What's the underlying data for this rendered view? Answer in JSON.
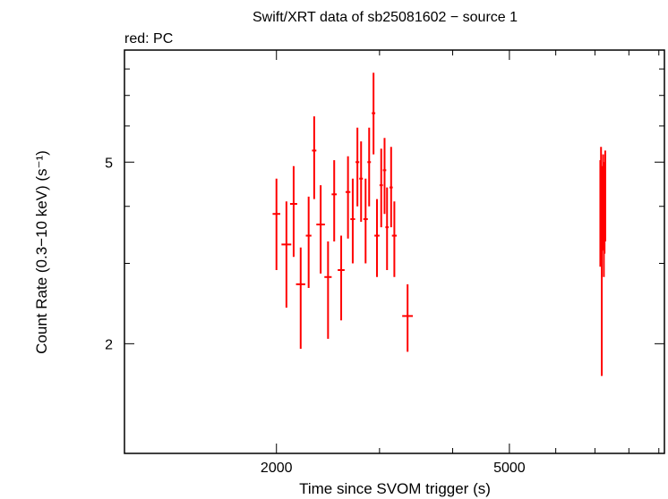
{
  "chart_data": {
    "type": "scatter",
    "title": "Swift/XRT data of sb25081602 − source 1",
    "subtitle": "red: PC",
    "xlabel": "Time since SVOM trigger (s)",
    "ylabel": "Count Rate (0.3−10 keV) (s⁻¹)",
    "x_scale": "log",
    "y_scale": "log",
    "xlim": [
      1100,
      9200
    ],
    "ylim": [
      1.15,
      8.8
    ],
    "x_ticks": [
      {
        "value": 2000,
        "label": "2000"
      },
      {
        "value": 5000,
        "label": "5000"
      }
    ],
    "y_ticks": [
      {
        "value": 2,
        "label": "2"
      },
      {
        "value": 5,
        "label": "5"
      }
    ],
    "x_minor_ticks": [
      3000,
      4000,
      6000,
      7000,
      8000,
      9000
    ],
    "y_minor_ticks": [
      3,
      4,
      6,
      7,
      8
    ],
    "grid": false,
    "series": [
      {
        "name": "PC",
        "color": "#ff0000",
        "points": [
          {
            "x": 2000,
            "xerr_lo": 30,
            "xerr_hi": 30,
            "y": 3.85,
            "yerr_lo": 0.95,
            "yerr_hi": 0.75
          },
          {
            "x": 2080,
            "xerr_lo": 40,
            "xerr_hi": 40,
            "y": 3.3,
            "yerr_lo": 0.9,
            "yerr_hi": 0.8
          },
          {
            "x": 2140,
            "xerr_lo": 30,
            "xerr_hi": 30,
            "y": 4.05,
            "yerr_lo": 0.95,
            "yerr_hi": 0.85
          },
          {
            "x": 2200,
            "xerr_lo": 40,
            "xerr_hi": 40,
            "y": 2.7,
            "yerr_lo": 0.75,
            "yerr_hi": 0.55
          },
          {
            "x": 2270,
            "xerr_lo": 25,
            "xerr_hi": 25,
            "y": 3.45,
            "yerr_lo": 0.8,
            "yerr_hi": 0.75
          },
          {
            "x": 2320,
            "xerr_lo": 20,
            "xerr_hi": 20,
            "y": 5.3,
            "yerr_lo": 1.15,
            "yerr_hi": 1.0
          },
          {
            "x": 2380,
            "xerr_lo": 40,
            "xerr_hi": 40,
            "y": 3.65,
            "yerr_lo": 0.8,
            "yerr_hi": 0.8
          },
          {
            "x": 2450,
            "xerr_lo": 35,
            "xerr_hi": 35,
            "y": 2.8,
            "yerr_lo": 0.75,
            "yerr_hi": 0.55
          },
          {
            "x": 2510,
            "xerr_lo": 25,
            "xerr_hi": 25,
            "y": 4.25,
            "yerr_lo": 0.9,
            "yerr_hi": 0.8
          },
          {
            "x": 2580,
            "xerr_lo": 35,
            "xerr_hi": 35,
            "y": 2.9,
            "yerr_lo": 0.65,
            "yerr_hi": 0.55
          },
          {
            "x": 2650,
            "xerr_lo": 25,
            "xerr_hi": 25,
            "y": 4.3,
            "yerr_lo": 0.9,
            "yerr_hi": 0.85
          },
          {
            "x": 2700,
            "xerr_lo": 25,
            "xerr_hi": 25,
            "y": 3.75,
            "yerr_lo": 0.75,
            "yerr_hi": 0.85
          },
          {
            "x": 2750,
            "xerr_lo": 20,
            "xerr_hi": 20,
            "y": 5.0,
            "yerr_lo": 1.0,
            "yerr_hi": 0.95
          },
          {
            "x": 2790,
            "xerr_lo": 20,
            "xerr_hi": 20,
            "y": 4.6,
            "yerr_lo": 0.9,
            "yerr_hi": 0.95
          },
          {
            "x": 2840,
            "xerr_lo": 25,
            "xerr_hi": 25,
            "y": 3.75,
            "yerr_lo": 0.75,
            "yerr_hi": 0.85
          },
          {
            "x": 2880,
            "xerr_lo": 20,
            "xerr_hi": 20,
            "y": 5.0,
            "yerr_lo": 1.0,
            "yerr_hi": 0.95
          },
          {
            "x": 2930,
            "xerr_lo": 20,
            "xerr_hi": 20,
            "y": 6.4,
            "yerr_lo": 1.2,
            "yerr_hi": 1.45
          },
          {
            "x": 2970,
            "xerr_lo": 30,
            "xerr_hi": 30,
            "y": 3.45,
            "yerr_lo": 0.65,
            "yerr_hi": 0.7
          },
          {
            "x": 3020,
            "xerr_lo": 20,
            "xerr_hi": 20,
            "y": 4.45,
            "yerr_lo": 0.85,
            "yerr_hi": 0.9
          },
          {
            "x": 3060,
            "xerr_lo": 20,
            "xerr_hi": 20,
            "y": 4.8,
            "yerr_lo": 0.95,
            "yerr_hi": 0.85
          },
          {
            "x": 3090,
            "xerr_lo": 20,
            "xerr_hi": 20,
            "y": 3.6,
            "yerr_lo": 0.7,
            "yerr_hi": 0.8
          },
          {
            "x": 3140,
            "xerr_lo": 20,
            "xerr_hi": 20,
            "y": 4.4,
            "yerr_lo": 0.8,
            "yerr_hi": 1.0
          },
          {
            "x": 3180,
            "xerr_lo": 30,
            "xerr_hi": 30,
            "y": 3.45,
            "yerr_lo": 0.65,
            "yerr_hi": 0.65
          },
          {
            "x": 3350,
            "xerr_lo": 70,
            "xerr_hi": 70,
            "y": 2.3,
            "yerr_lo": 0.38,
            "yerr_hi": 0.4
          },
          {
            "x": 7150,
            "xerr_lo": 8,
            "xerr_hi": 8,
            "y": 3.9,
            "yerr_lo": 0.95,
            "yerr_hi": 1.15
          },
          {
            "x": 7170,
            "xerr_lo": 8,
            "xerr_hi": 8,
            "y": 4.5,
            "yerr_lo": 1.0,
            "yerr_hi": 0.9
          },
          {
            "x": 7190,
            "xerr_lo": 8,
            "xerr_hi": 8,
            "y": 3.35,
            "yerr_lo": 1.65,
            "yerr_hi": 1.1
          },
          {
            "x": 7210,
            "xerr_lo": 8,
            "xerr_hi": 8,
            "y": 3.85,
            "yerr_lo": 0.65,
            "yerr_hi": 1.05
          },
          {
            "x": 7230,
            "xerr_lo": 8,
            "xerr_hi": 8,
            "y": 4.35,
            "yerr_lo": 0.95,
            "yerr_hi": 0.85
          },
          {
            "x": 7250,
            "xerr_lo": 8,
            "xerr_hi": 8,
            "y": 3.65,
            "yerr_lo": 0.85,
            "yerr_hi": 1.15
          },
          {
            "x": 7270,
            "xerr_lo": 8,
            "xerr_hi": 8,
            "y": 4.1,
            "yerr_lo": 0.95,
            "yerr_hi": 0.9
          },
          {
            "x": 7290,
            "xerr_lo": 8,
            "xerr_hi": 8,
            "y": 4.3,
            "yerr_lo": 0.95,
            "yerr_hi": 1.0
          }
        ]
      }
    ]
  }
}
